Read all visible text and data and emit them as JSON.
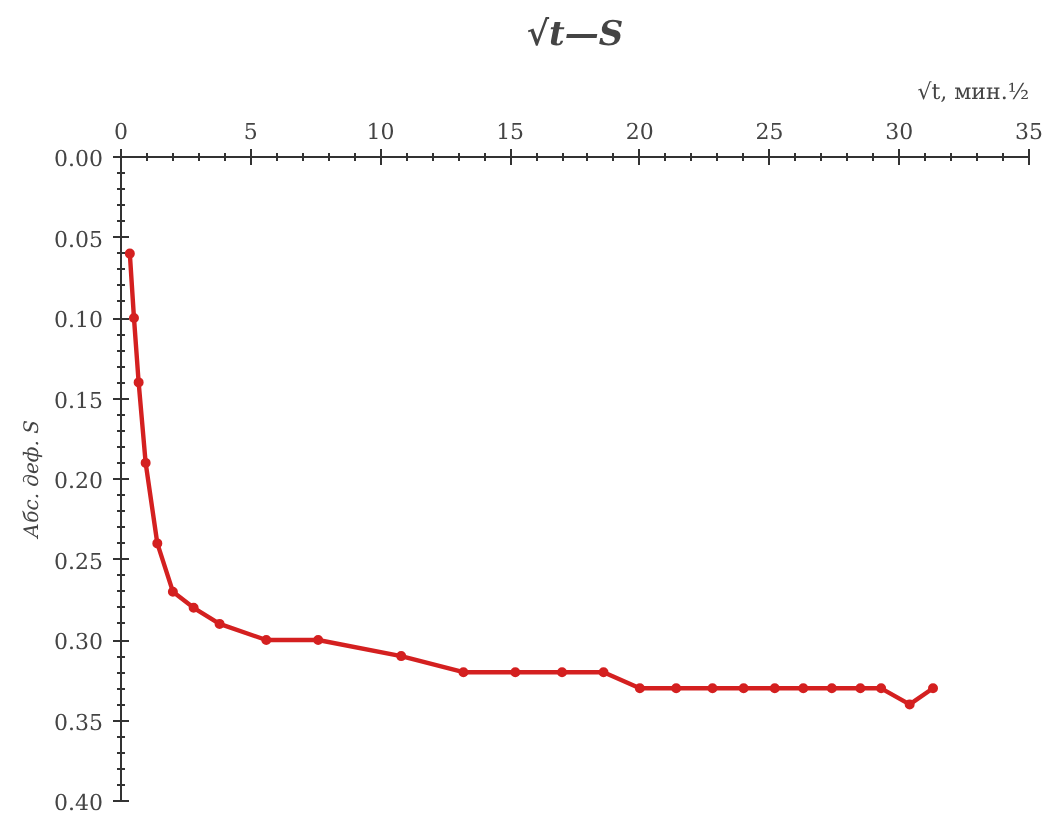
{
  "chart_data": {
    "type": "line",
    "title": "√t—S",
    "xlabel": "√t, мин.½",
    "ylabel": "Абс. деф. S",
    "x": [
      0.34,
      0.5,
      0.68,
      0.95,
      1.4,
      2.0,
      2.8,
      3.8,
      5.6,
      7.6,
      10.8,
      13.2,
      15.2,
      17.0,
      18.6,
      20.0,
      21.4,
      22.8,
      24.0,
      25.2,
      26.3,
      27.4,
      28.5,
      29.3,
      30.4,
      31.3
    ],
    "series": [
      {
        "color": "#d42020",
        "values": [
          0.06,
          0.1,
          0.14,
          0.19,
          0.24,
          0.27,
          0.28,
          0.29,
          0.3,
          0.3,
          0.31,
          0.32,
          0.32,
          0.32,
          0.32,
          0.33,
          0.33,
          0.33,
          0.33,
          0.33,
          0.33,
          0.33,
          0.33,
          0.33,
          0.34,
          0.33
        ]
      }
    ],
    "xlim": [
      0,
      35
    ],
    "xticks": [
      0,
      5,
      10,
      15,
      20,
      25,
      30,
      35
    ],
    "ylim": [
      0.4,
      0.0
    ],
    "yticks": [
      {
        "value": 0,
        "label": "0.00"
      },
      {
        "value": 0.05,
        "label": "0.05"
      },
      {
        "value": 0.1,
        "label": "0.10"
      },
      {
        "value": 0.15,
        "label": "0.15"
      },
      {
        "value": 0.2,
        "label": "0.20"
      },
      {
        "value": 0.25,
        "label": "0.25"
      },
      {
        "value": 0.3,
        "label": "0.30"
      },
      {
        "value": 0.35,
        "label": "0.35"
      },
      {
        "value": 0.4,
        "label": "0.40"
      }
    ],
    "grid": false,
    "marker": "circle",
    "line_style": "solid"
  }
}
